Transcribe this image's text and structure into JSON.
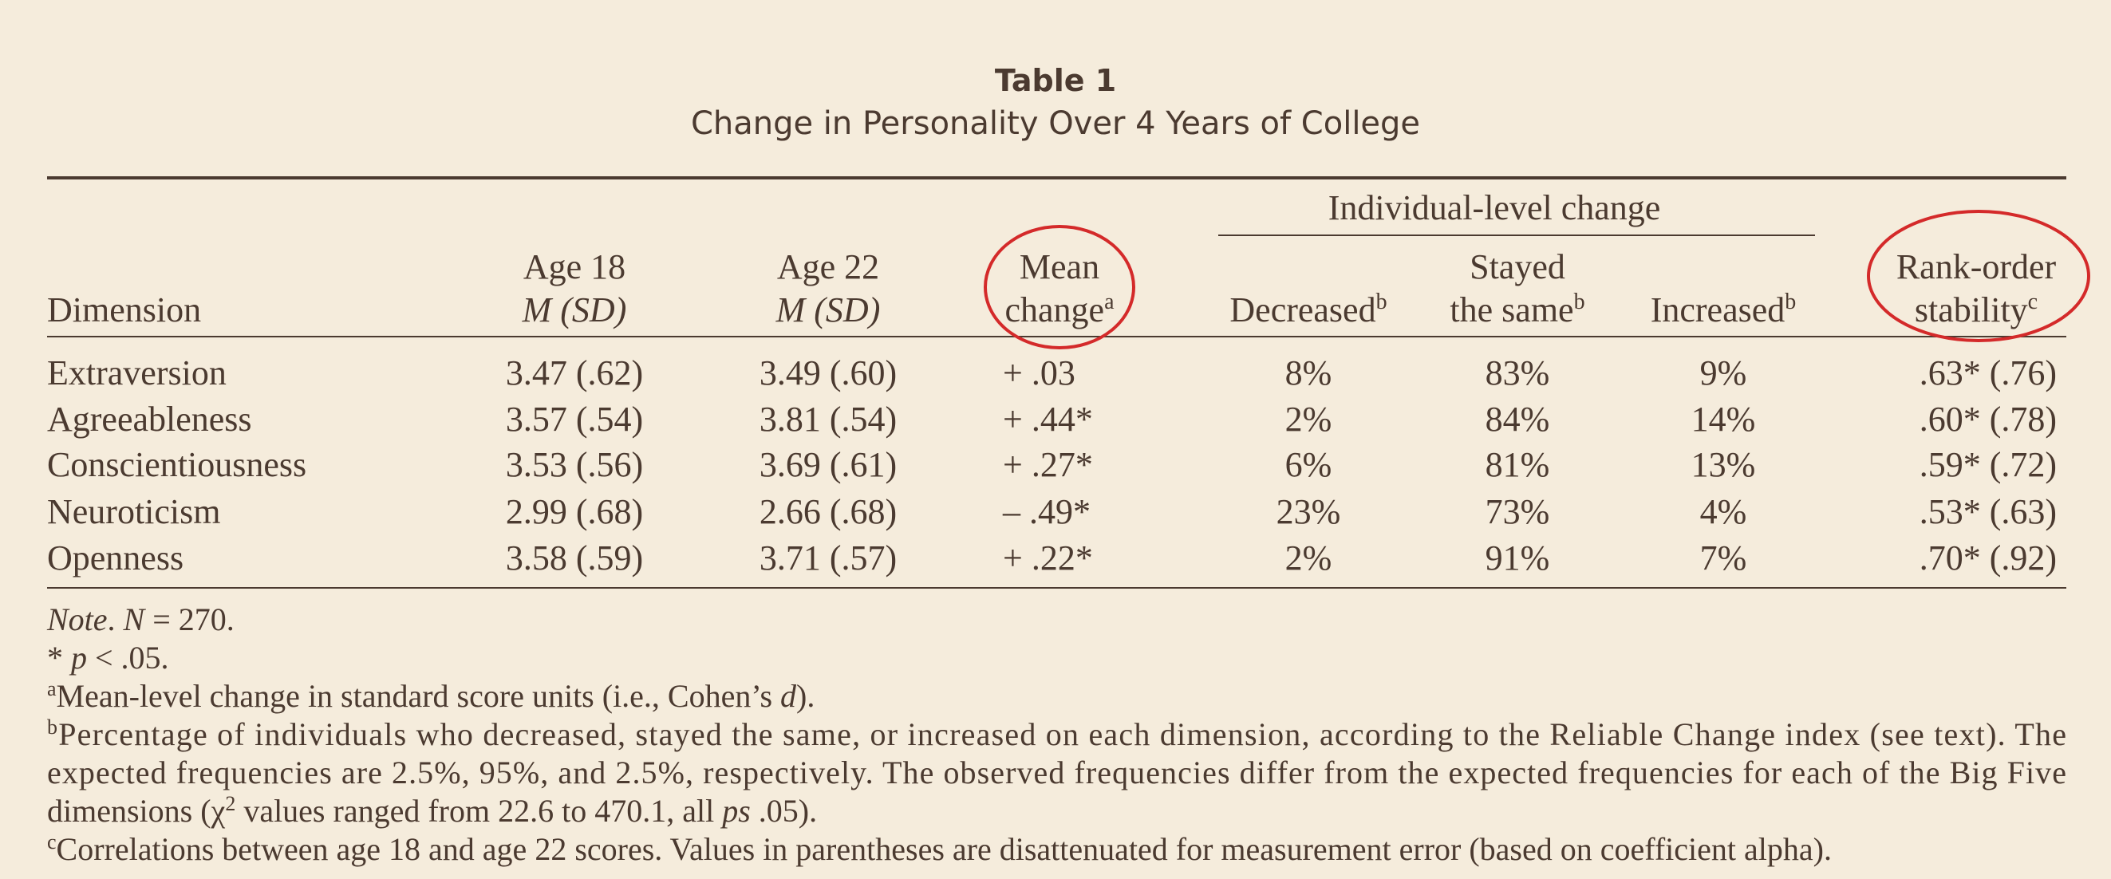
{
  "header": {
    "label": "Table 1",
    "title": "Change in Personality Over 4 Years of College"
  },
  "table": {
    "group_header": "Individual-level change",
    "columns": [
      {
        "lines": [
          "Dimension"
        ]
      },
      {
        "lines": [
          "Age 18",
          "M (SD)"
        ]
      },
      {
        "lines": [
          "Age 22",
          "M (SD)"
        ]
      },
      {
        "lines": [
          "Mean",
          "change"
        ],
        "sup": "a"
      },
      {
        "lines": [
          "Decreased"
        ],
        "sup": "b"
      },
      {
        "lines": [
          "Stayed",
          "the same"
        ],
        "sup": "b"
      },
      {
        "lines": [
          "Increased"
        ],
        "sup": "b"
      },
      {
        "lines": [
          "Rank-order",
          "stability"
        ],
        "sup": "c"
      }
    ],
    "rows": [
      [
        "Extraversion",
        "3.47 (.62)",
        "3.49 (.60)",
        "+ .03",
        "8%",
        "83%",
        "9%",
        ".63* (.76)"
      ],
      [
        "Agreeableness",
        "3.57 (.54)",
        "3.81 (.54)",
        "+ .44*",
        "2%",
        "84%",
        "14%",
        ".60* (.78)"
      ],
      [
        "Conscientiousness",
        "3.53 (.56)",
        "3.69 (.61)",
        "+ .27*",
        "6%",
        "81%",
        "13%",
        ".59* (.72)"
      ],
      [
        "Neuroticism",
        "2.99 (.68)",
        "2.66 (.68)",
        "– .49*",
        "23%",
        "73%",
        "4%",
        ".53* (.63)"
      ],
      [
        "Openness",
        "3.58 (.59)",
        "3.71 (.57)",
        "+ .22*",
        "2%",
        "91%",
        "7%",
        ".70* (.92)"
      ]
    ]
  },
  "notes": [
    [
      {
        "text": "Note",
        "italic": true
      },
      {
        "text": ". "
      },
      {
        "text": "N",
        "italic": true
      },
      {
        "text": " = 270."
      }
    ],
    [
      {
        "text": "* "
      },
      {
        "text": "p",
        "italic": true
      },
      {
        "text": " < .05."
      }
    ],
    [
      {
        "text": "a",
        "sup": true
      },
      {
        "text": "Mean-level change in standard score units (i.e., Cohen’s "
      },
      {
        "text": "d",
        "italic": true
      },
      {
        "text": ")."
      }
    ],
    [
      {
        "text": "b",
        "sup": true
      },
      {
        "text": "Percentage of individuals who decreased, stayed the same, or increased on each dimension, according to the Reliable Change index (see text).  The"
      }
    ],
    [
      {
        "text": "expected frequencies are 2.5%, 95%, and 2.5%, respectively.  The observed frequencies differ from the expected frequencies for each of the Big Five"
      }
    ],
    [
      {
        "text": "dimensions (χ"
      },
      {
        "text": "2",
        "sup": true
      },
      {
        "text": " values ranged from 22.6 to 470.1, all "
      },
      {
        "text": "ps",
        "italic": true
      },
      {
        "text": " .05)."
      }
    ],
    [
      {
        "text": "c",
        "sup": true
      },
      {
        "text": "Correlations between age 18 and age 22 scores.  Values in parentheses are disattenuated for measurement error (based on coefficient alpha)."
      }
    ]
  ]
}
